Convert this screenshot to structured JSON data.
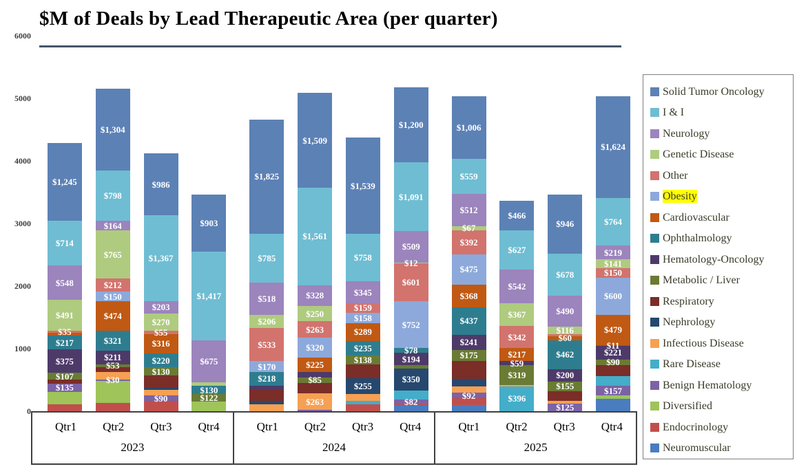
{
  "highlighted_legend_item": "Obesity",
  "chart_data": {
    "type": "bar",
    "stacked": true,
    "title": "$M of Deals by Lead Therapeutic Area (per quarter)",
    "value_unit": "$M",
    "ylim": [
      0,
      6000
    ],
    "yticks": [
      0,
      1000,
      2000,
      3000,
      4000,
      5000,
      6000
    ],
    "grid": false,
    "legend_position": "right",
    "groups": [
      {
        "year": "2023",
        "quarters": [
          "Qtr1",
          "Qtr2",
          "Qtr3",
          "Qtr4"
        ]
      },
      {
        "year": "2024",
        "quarters": [
          "Qtr1",
          "Qtr2",
          "Qtr3",
          "Qtr4"
        ]
      },
      {
        "year": "2025",
        "quarters": [
          "Qtr1",
          "Qtr2",
          "Qtr3",
          "Qtr4"
        ]
      }
    ],
    "categories": [
      "2023 Qtr1",
      "2023 Qtr2",
      "2023 Qtr3",
      "2023 Qtr4",
      "2024 Qtr1",
      "2024 Qtr2",
      "2024 Qtr3",
      "2024 Qtr4",
      "2025 Qtr1",
      "2025 Qtr2",
      "2025 Qtr3",
      "2025 Qtr4"
    ],
    "series": [
      {
        "name": "Solid Tumor Oncology",
        "color": "#5C81B5",
        "values": [
          1245,
          1304,
          986,
          903,
          1825,
          1509,
          1539,
          1200,
          1006,
          466,
          946,
          1624
        ],
        "labels": [
          "$1,245",
          "$1,304",
          "$986",
          "$903",
          "$1,825",
          "$1,509",
          "$1,539",
          "$1,200",
          "$1,006",
          "$466",
          "$946",
          "$1,624"
        ]
      },
      {
        "name": "I & I",
        "color": "#6FBDD2",
        "values": [
          714,
          798,
          1367,
          1417,
          785,
          1561,
          758,
          1091,
          559,
          627,
          678,
          764
        ],
        "labels": [
          "$714",
          "$798",
          "$1,367",
          "$1,417",
          "$785",
          "$1,561",
          "$758",
          "$1,091",
          "$559",
          "$627",
          "$678",
          "$764"
        ]
      },
      {
        "name": "Neurology",
        "color": "#9C84BD",
        "values": [
          548,
          164,
          203,
          675,
          518,
          328,
          345,
          509,
          512,
          542,
          490,
          219
        ],
        "labels": [
          "$548",
          "$164",
          "$203",
          "$675",
          "$518",
          "$328",
          "$345",
          "$509",
          "$512",
          "$542",
          "$490",
          "$219"
        ]
      },
      {
        "name": "Genetic Disease",
        "color": "#AFCB7F",
        "values": [
          491,
          765,
          270,
          60,
          206,
          250,
          0,
          12,
          67,
          367,
          116,
          141
        ],
        "labels": [
          "$491",
          "$765",
          "$270",
          null,
          "$206",
          "$250",
          null,
          "$12",
          "$67",
          "$367",
          "$116",
          "$141"
        ]
      },
      {
        "name": "Other",
        "color": "#D2736E",
        "values": [
          35,
          212,
          55,
          0,
          533,
          263,
          159,
          601,
          392,
          342,
          40,
          150
        ],
        "labels": [
          "$35",
          "$212",
          "$55",
          null,
          "$533",
          "$263",
          "$159",
          "$601",
          "$392",
          "$342",
          null,
          "$150"
        ]
      },
      {
        "name": "Obesity",
        "color": "#8DA9DB",
        "values": [
          0,
          150,
          0,
          0,
          170,
          320,
          158,
          752,
          475,
          0,
          0,
          600
        ],
        "labels": [
          null,
          "$150",
          null,
          null,
          "$170",
          "$320",
          "$158",
          "$752",
          "$475",
          null,
          null,
          "$600"
        ]
      },
      {
        "name": "Cardiovascular",
        "color": "#C05913",
        "values": [
          50,
          474,
          316,
          0,
          0,
          225,
          289,
          0,
          368,
          217,
          60,
          479
        ],
        "labels": [
          null,
          "$474",
          "$316",
          null,
          null,
          "$225",
          "$289",
          null,
          "$368",
          "$217",
          "$60",
          "$479"
        ]
      },
      {
        "name": "Ophthalmology",
        "color": "#2E7D8F",
        "values": [
          217,
          321,
          220,
          130,
          218,
          0,
          235,
          78,
          437,
          0,
          462,
          11
        ],
        "labels": [
          "$217",
          "$321",
          "$220",
          "$130",
          "$218",
          null,
          "$235",
          "$78",
          "$437",
          null,
          "$462",
          "$11"
        ]
      },
      {
        "name": "Hematology-Oncology",
        "color": "#4D3A69",
        "values": [
          375,
          211,
          0,
          0,
          65,
          90,
          0,
          194,
          241,
          59,
          200,
          221
        ],
        "labels": [
          "$375",
          "$211",
          null,
          null,
          null,
          null,
          null,
          "$194",
          "$241",
          "$59",
          "$200",
          "$221"
        ]
      },
      {
        "name": "Metabolic / Liver",
        "color": "#6A7B34",
        "values": [
          107,
          53,
          130,
          122,
          0,
          85,
          138,
          55,
          175,
          319,
          155,
          90
        ],
        "labels": [
          "$107",
          "$53",
          "$130",
          "$122",
          null,
          "$85",
          "$138",
          null,
          "$175",
          "$319",
          "$155",
          "$90"
        ]
      },
      {
        "name": "Respiratory",
        "color": "#7B2D28",
        "values": [
          60,
          70,
          200,
          0,
          180,
          170,
          220,
          0,
          290,
          0,
          160,
          180
        ],
        "labels": [
          null,
          null,
          null,
          null,
          null,
          null,
          null,
          null,
          null,
          null,
          null,
          null
        ]
      },
      {
        "name": "Nephrology",
        "color": "#26486E",
        "values": [
          0,
          0,
          30,
          0,
          55,
          0,
          255,
          350,
          120,
          0,
          0,
          0
        ],
        "labels": [
          null,
          null,
          null,
          null,
          null,
          null,
          "$255",
          "$350",
          null,
          null,
          null,
          null
        ]
      },
      {
        "name": "Infectious Disease",
        "color": "#F5A053",
        "values": [
          0,
          120,
          90,
          0,
          110,
          263,
          110,
          0,
          100,
          25,
          35,
          0
        ],
        "labels": [
          null,
          null,
          null,
          null,
          null,
          "$263",
          null,
          null,
          null,
          null,
          null,
          null
        ]
      },
      {
        "name": "Rare Disease",
        "color": "#44ADC9",
        "values": [
          0,
          0,
          0,
          0,
          0,
          0,
          55,
          140,
          0,
          396,
          0,
          150
        ],
        "labels": [
          null,
          null,
          null,
          null,
          null,
          null,
          null,
          null,
          null,
          "$396",
          null,
          null
        ]
      },
      {
        "name": "Benign Hematology",
        "color": "#7B63A5",
        "values": [
          135,
          30,
          90,
          0,
          0,
          20,
          0,
          82,
          92,
          0,
          125,
          157
        ],
        "labels": [
          "$135",
          "$30",
          "$90",
          null,
          null,
          null,
          null,
          "$82",
          "$92",
          null,
          "$125",
          "$157"
        ]
      },
      {
        "name": "Diversified",
        "color": "#9EC45A",
        "values": [
          200,
          350,
          0,
          150,
          0,
          0,
          0,
          0,
          0,
          0,
          0,
          50
        ],
        "labels": [
          null,
          null,
          null,
          null,
          null,
          null,
          null,
          null,
          null,
          null,
          null,
          null
        ]
      },
      {
        "name": "Endocrinology",
        "color": "#C04F4C",
        "values": [
          110,
          130,
          160,
          0,
          0,
          0,
          110,
          20,
          110,
          0,
          0,
          0
        ],
        "labels": [
          null,
          null,
          null,
          null,
          null,
          null,
          null,
          null,
          null,
          null,
          null,
          null
        ]
      },
      {
        "name": "Neuromuscular",
        "color": "#4A7CC0",
        "values": [
          0,
          0,
          0,
          0,
          0,
          0,
          0,
          90,
          95,
          0,
          0,
          200
        ],
        "labels": [
          null,
          null,
          null,
          null,
          null,
          null,
          null,
          null,
          null,
          null,
          null,
          null
        ]
      }
    ]
  }
}
